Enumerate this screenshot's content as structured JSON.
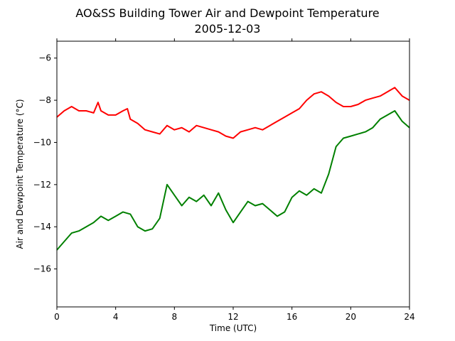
{
  "chart_data": {
    "type": "line",
    "title": "AO&SS Building Tower Air and Dewpoint Temperature",
    "subtitle": "2005-12-03",
    "xlabel": "Time (UTC)",
    "ylabel": "Air and Dewpoint Temperature (°C)",
    "xlim": [
      0,
      24
    ],
    "ylim": [
      -17.8,
      -5.2
    ],
    "xticks": [
      0,
      4,
      8,
      12,
      16,
      20,
      24
    ],
    "yticks": [
      -16,
      -14,
      -12,
      -10,
      -8,
      -6
    ],
    "grid": false,
    "series": [
      {
        "color": "#ff0000",
        "x": [
          0,
          0.5,
          1,
          1.5,
          2,
          2.5,
          2.8,
          3,
          3.5,
          4,
          4.5,
          4.8,
          5,
          5.5,
          6,
          6.5,
          7,
          7.5,
          8,
          8.5,
          9,
          9.5,
          10,
          10.5,
          11,
          11.5,
          12,
          12.5,
          13,
          13.5,
          14,
          14.5,
          15,
          15.5,
          16,
          16.5,
          17,
          17.5,
          18,
          18.5,
          19,
          19.5,
          20,
          20.5,
          21,
          21.5,
          22,
          22.5,
          23,
          23.5,
          24
        ],
        "values": [
          -8.8,
          -8.5,
          -8.3,
          -8.5,
          -8.5,
          -8.6,
          -8.1,
          -8.5,
          -8.7,
          -8.7,
          -8.5,
          -8.4,
          -8.9,
          -9.1,
          -9.4,
          -9.5,
          -9.6,
          -9.2,
          -9.4,
          -9.3,
          -9.5,
          -9.2,
          -9.3,
          -9.4,
          -9.5,
          -9.7,
          -9.8,
          -9.5,
          -9.4,
          -9.3,
          -9.4,
          -9.2,
          -9.0,
          -8.8,
          -8.6,
          -8.4,
          -8.0,
          -7.7,
          -7.6,
          -7.8,
          -8.1,
          -8.3,
          -8.3,
          -8.2,
          -8.0,
          -7.9,
          -7.8,
          -7.6,
          -7.4,
          -7.8,
          -8.0
        ]
      },
      {
        "color": "#008000",
        "x": [
          0,
          0.5,
          1,
          1.5,
          2,
          2.5,
          3,
          3.5,
          4,
          4.5,
          5,
          5.5,
          6,
          6.5,
          7,
          7.5,
          8,
          8.5,
          9,
          9.5,
          10,
          10.5,
          11,
          11.5,
          12,
          12.5,
          13,
          13.5,
          14,
          14.5,
          15,
          15.5,
          16,
          16.5,
          17,
          17.5,
          18,
          18.5,
          19,
          19.5,
          20,
          20.5,
          21,
          21.5,
          22,
          22.5,
          23,
          23.5,
          24
        ],
        "values": [
          -15.1,
          -14.7,
          -14.3,
          -14.2,
          -14.0,
          -13.8,
          -13.5,
          -13.7,
          -13.5,
          -13.3,
          -13.4,
          -14.0,
          -14.2,
          -14.1,
          -13.6,
          -12.0,
          -12.5,
          -13.0,
          -12.6,
          -12.8,
          -12.5,
          -13.0,
          -12.4,
          -13.2,
          -13.8,
          -13.3,
          -12.8,
          -13.0,
          -12.9,
          -13.2,
          -13.5,
          -13.3,
          -12.6,
          -12.3,
          -12.5,
          -12.2,
          -12.4,
          -11.5,
          -10.2,
          -9.8,
          -9.7,
          -9.6,
          -9.5,
          -9.3,
          -8.9,
          -8.7,
          -8.5,
          -9.0,
          -9.3
        ]
      }
    ]
  }
}
